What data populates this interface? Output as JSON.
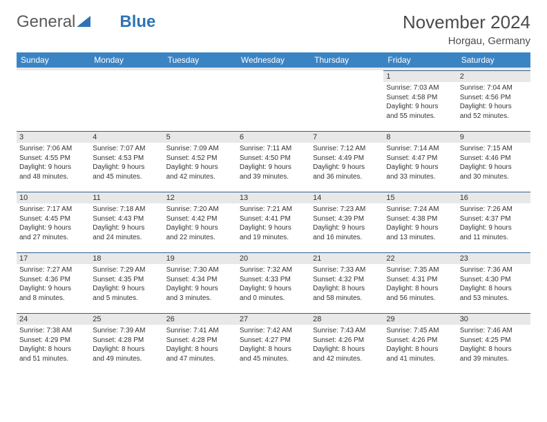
{
  "brand": {
    "word1": "General",
    "word2": "Blue"
  },
  "title": {
    "month_year": "November 2024",
    "location": "Horgau, Germany"
  },
  "colors": {
    "header_bg": "#3b84c4",
    "header_text": "#ffffff",
    "daynum_bg": "#e8e8e8",
    "daynum_border": "#2e5e8a",
    "text": "#333333",
    "brand_gray": "#5a5a5a",
    "brand_blue": "#2e74b5",
    "background": "#ffffff"
  },
  "fonts": {
    "title_size_pt": 20,
    "location_size_pt": 11,
    "header_size_pt": 9,
    "body_size_pt": 8
  },
  "day_headers": [
    "Sunday",
    "Monday",
    "Tuesday",
    "Wednesday",
    "Thursday",
    "Friday",
    "Saturday"
  ],
  "weeks": [
    [
      null,
      null,
      null,
      null,
      null,
      {
        "n": "1",
        "sr": "Sunrise: 7:03 AM",
        "ss": "Sunset: 4:58 PM",
        "d1": "Daylight: 9 hours",
        "d2": "and 55 minutes."
      },
      {
        "n": "2",
        "sr": "Sunrise: 7:04 AM",
        "ss": "Sunset: 4:56 PM",
        "d1": "Daylight: 9 hours",
        "d2": "and 52 minutes."
      }
    ],
    [
      {
        "n": "3",
        "sr": "Sunrise: 7:06 AM",
        "ss": "Sunset: 4:55 PM",
        "d1": "Daylight: 9 hours",
        "d2": "and 48 minutes."
      },
      {
        "n": "4",
        "sr": "Sunrise: 7:07 AM",
        "ss": "Sunset: 4:53 PM",
        "d1": "Daylight: 9 hours",
        "d2": "and 45 minutes."
      },
      {
        "n": "5",
        "sr": "Sunrise: 7:09 AM",
        "ss": "Sunset: 4:52 PM",
        "d1": "Daylight: 9 hours",
        "d2": "and 42 minutes."
      },
      {
        "n": "6",
        "sr": "Sunrise: 7:11 AM",
        "ss": "Sunset: 4:50 PM",
        "d1": "Daylight: 9 hours",
        "d2": "and 39 minutes."
      },
      {
        "n": "7",
        "sr": "Sunrise: 7:12 AM",
        "ss": "Sunset: 4:49 PM",
        "d1": "Daylight: 9 hours",
        "d2": "and 36 minutes."
      },
      {
        "n": "8",
        "sr": "Sunrise: 7:14 AM",
        "ss": "Sunset: 4:47 PM",
        "d1": "Daylight: 9 hours",
        "d2": "and 33 minutes."
      },
      {
        "n": "9",
        "sr": "Sunrise: 7:15 AM",
        "ss": "Sunset: 4:46 PM",
        "d1": "Daylight: 9 hours",
        "d2": "and 30 minutes."
      }
    ],
    [
      {
        "n": "10",
        "sr": "Sunrise: 7:17 AM",
        "ss": "Sunset: 4:45 PM",
        "d1": "Daylight: 9 hours",
        "d2": "and 27 minutes."
      },
      {
        "n": "11",
        "sr": "Sunrise: 7:18 AM",
        "ss": "Sunset: 4:43 PM",
        "d1": "Daylight: 9 hours",
        "d2": "and 24 minutes."
      },
      {
        "n": "12",
        "sr": "Sunrise: 7:20 AM",
        "ss": "Sunset: 4:42 PM",
        "d1": "Daylight: 9 hours",
        "d2": "and 22 minutes."
      },
      {
        "n": "13",
        "sr": "Sunrise: 7:21 AM",
        "ss": "Sunset: 4:41 PM",
        "d1": "Daylight: 9 hours",
        "d2": "and 19 minutes."
      },
      {
        "n": "14",
        "sr": "Sunrise: 7:23 AM",
        "ss": "Sunset: 4:39 PM",
        "d1": "Daylight: 9 hours",
        "d2": "and 16 minutes."
      },
      {
        "n": "15",
        "sr": "Sunrise: 7:24 AM",
        "ss": "Sunset: 4:38 PM",
        "d1": "Daylight: 9 hours",
        "d2": "and 13 minutes."
      },
      {
        "n": "16",
        "sr": "Sunrise: 7:26 AM",
        "ss": "Sunset: 4:37 PM",
        "d1": "Daylight: 9 hours",
        "d2": "and 11 minutes."
      }
    ],
    [
      {
        "n": "17",
        "sr": "Sunrise: 7:27 AM",
        "ss": "Sunset: 4:36 PM",
        "d1": "Daylight: 9 hours",
        "d2": "and 8 minutes."
      },
      {
        "n": "18",
        "sr": "Sunrise: 7:29 AM",
        "ss": "Sunset: 4:35 PM",
        "d1": "Daylight: 9 hours",
        "d2": "and 5 minutes."
      },
      {
        "n": "19",
        "sr": "Sunrise: 7:30 AM",
        "ss": "Sunset: 4:34 PM",
        "d1": "Daylight: 9 hours",
        "d2": "and 3 minutes."
      },
      {
        "n": "20",
        "sr": "Sunrise: 7:32 AM",
        "ss": "Sunset: 4:33 PM",
        "d1": "Daylight: 9 hours",
        "d2": "and 0 minutes."
      },
      {
        "n": "21",
        "sr": "Sunrise: 7:33 AM",
        "ss": "Sunset: 4:32 PM",
        "d1": "Daylight: 8 hours",
        "d2": "and 58 minutes."
      },
      {
        "n": "22",
        "sr": "Sunrise: 7:35 AM",
        "ss": "Sunset: 4:31 PM",
        "d1": "Daylight: 8 hours",
        "d2": "and 56 minutes."
      },
      {
        "n": "23",
        "sr": "Sunrise: 7:36 AM",
        "ss": "Sunset: 4:30 PM",
        "d1": "Daylight: 8 hours",
        "d2": "and 53 minutes."
      }
    ],
    [
      {
        "n": "24",
        "sr": "Sunrise: 7:38 AM",
        "ss": "Sunset: 4:29 PM",
        "d1": "Daylight: 8 hours",
        "d2": "and 51 minutes."
      },
      {
        "n": "25",
        "sr": "Sunrise: 7:39 AM",
        "ss": "Sunset: 4:28 PM",
        "d1": "Daylight: 8 hours",
        "d2": "and 49 minutes."
      },
      {
        "n": "26",
        "sr": "Sunrise: 7:41 AM",
        "ss": "Sunset: 4:28 PM",
        "d1": "Daylight: 8 hours",
        "d2": "and 47 minutes."
      },
      {
        "n": "27",
        "sr": "Sunrise: 7:42 AM",
        "ss": "Sunset: 4:27 PM",
        "d1": "Daylight: 8 hours",
        "d2": "and 45 minutes."
      },
      {
        "n": "28",
        "sr": "Sunrise: 7:43 AM",
        "ss": "Sunset: 4:26 PM",
        "d1": "Daylight: 8 hours",
        "d2": "and 42 minutes."
      },
      {
        "n": "29",
        "sr": "Sunrise: 7:45 AM",
        "ss": "Sunset: 4:26 PM",
        "d1": "Daylight: 8 hours",
        "d2": "and 41 minutes."
      },
      {
        "n": "30",
        "sr": "Sunrise: 7:46 AM",
        "ss": "Sunset: 4:25 PM",
        "d1": "Daylight: 8 hours",
        "d2": "and 39 minutes."
      }
    ]
  ]
}
